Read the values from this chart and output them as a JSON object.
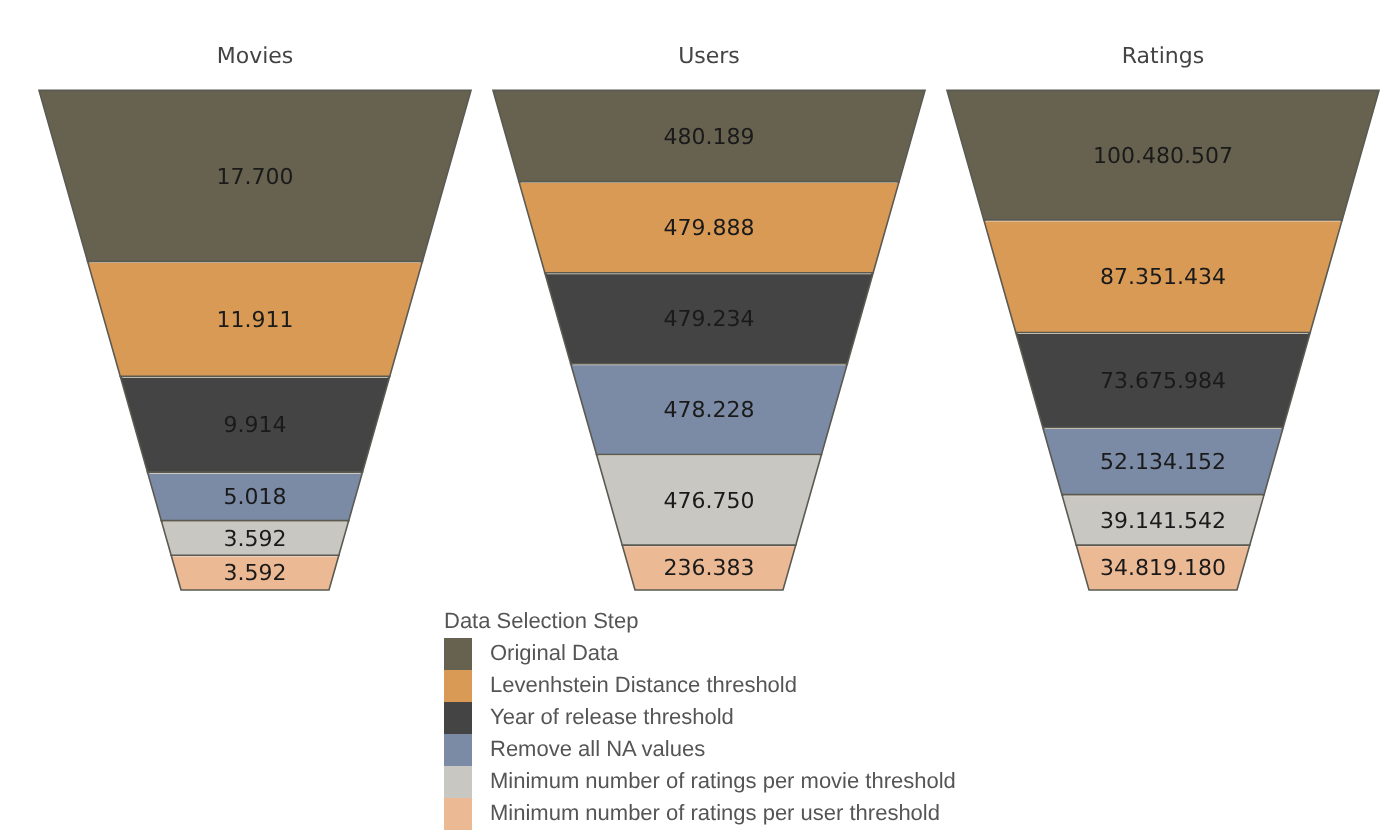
{
  "chart_data": {
    "type": "other",
    "categories": [
      "Movies",
      "Users",
      "Ratings"
    ],
    "legend": "bottom",
    "legend_title": "Data Selection Step",
    "series": [
      {
        "name": "Original Data",
        "color": "#67624f",
        "values": [
          17700,
          480189,
          100480507
        ],
        "value_labels": [
          "17.700",
          "480.189",
          "100.480.507"
        ]
      },
      {
        "name": "Levenhstein Distance threshold",
        "color": "#d99a56",
        "values": [
          11911,
          479888,
          87351434
        ],
        "value_labels": [
          "11.911",
          "479.888",
          "87.351.434"
        ]
      },
      {
        "name": "Year of release threshold",
        "color": "#444444",
        "values": [
          9914,
          479234,
          73675984
        ],
        "value_labels": [
          "9.914",
          "479.234",
          "73.675.984"
        ]
      },
      {
        "name": "Remove all NA values",
        "color": "#7b8ba6",
        "values": [
          5018,
          478228,
          52134152
        ],
        "value_labels": [
          "5.018",
          "478.228",
          "52.134.152"
        ]
      },
      {
        "name": "Minimum number of ratings per movie threshold",
        "color": "#c9c7c1",
        "values": [
          3592,
          476750,
          39141542
        ],
        "value_labels": [
          "3.592",
          "476.750",
          "39.141.542"
        ]
      },
      {
        "name": "Minimum number of ratings per user threshold",
        "color": "#ecb995",
        "values": [
          3592,
          236383,
          34819180
        ],
        "value_labels": [
          "3.592",
          "236.383",
          "34.819.180"
        ]
      }
    ]
  }
}
